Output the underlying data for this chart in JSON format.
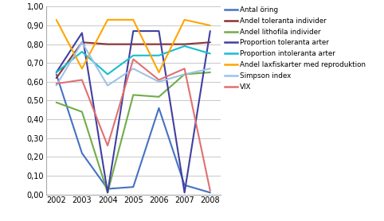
{
  "years": [
    2002,
    2003,
    2004,
    2005,
    2006,
    2007,
    2008
  ],
  "series": [
    {
      "label": "Antal öring",
      "color": "#4472C4",
      "values": [
        0.64,
        0.22,
        0.03,
        0.04,
        0.46,
        0.05,
        0.01
      ]
    },
    {
      "label": "Andel toleranta individer",
      "color": "#8B3333",
      "values": [
        0.62,
        0.81,
        0.8,
        0.8,
        0.8,
        0.8,
        0.81
      ]
    },
    {
      "label": "Andel lithofila individer",
      "color": "#70AD47",
      "values": [
        0.49,
        0.44,
        0.01,
        0.53,
        0.52,
        0.64,
        0.65
      ]
    },
    {
      "label": "Proportion toleranta arter",
      "color": "#4040A0",
      "values": [
        0.65,
        0.86,
        0.01,
        0.87,
        0.87,
        0.01,
        0.87
      ]
    },
    {
      "label": "Proportion intoleranta arter",
      "color": "#17BECF",
      "values": [
        0.65,
        0.76,
        0.64,
        0.74,
        0.74,
        0.79,
        0.75
      ]
    },
    {
      "label": "Andel laxfiskarter med reproduktion",
      "color": "#FFA500",
      "values": [
        0.93,
        0.67,
        0.93,
        0.93,
        0.65,
        0.93,
        0.9
      ]
    },
    {
      "label": "Simpson index",
      "color": "#9DC3E6",
      "values": [
        0.58,
        0.81,
        0.58,
        0.67,
        0.6,
        0.64,
        0.67
      ]
    },
    {
      "label": "VIX",
      "color": "#E07070",
      "values": [
        0.59,
        0.61,
        0.26,
        0.72,
        0.61,
        0.67,
        0.02
      ]
    }
  ],
  "xlim": [
    2001.6,
    2008.4
  ],
  "ylim": [
    0.0,
    1.0
  ],
  "yticks": [
    0.0,
    0.1,
    0.2,
    0.3,
    0.4,
    0.5,
    0.6,
    0.7,
    0.8,
    0.9,
    1.0
  ],
  "ytick_labels": [
    "0,00",
    "0,10",
    "0,20",
    "0,30",
    "0,40",
    "0,50",
    "0,60",
    "0,70",
    "0,80",
    "0,90",
    "1,00"
  ],
  "xticks": [
    2002,
    2003,
    2004,
    2005,
    2006,
    2007,
    2008
  ],
  "background_color": "#FFFFFF",
  "plot_bg_color": "#FFFFFF",
  "grid_color": "#C8C8C8",
  "line_width": 1.5
}
